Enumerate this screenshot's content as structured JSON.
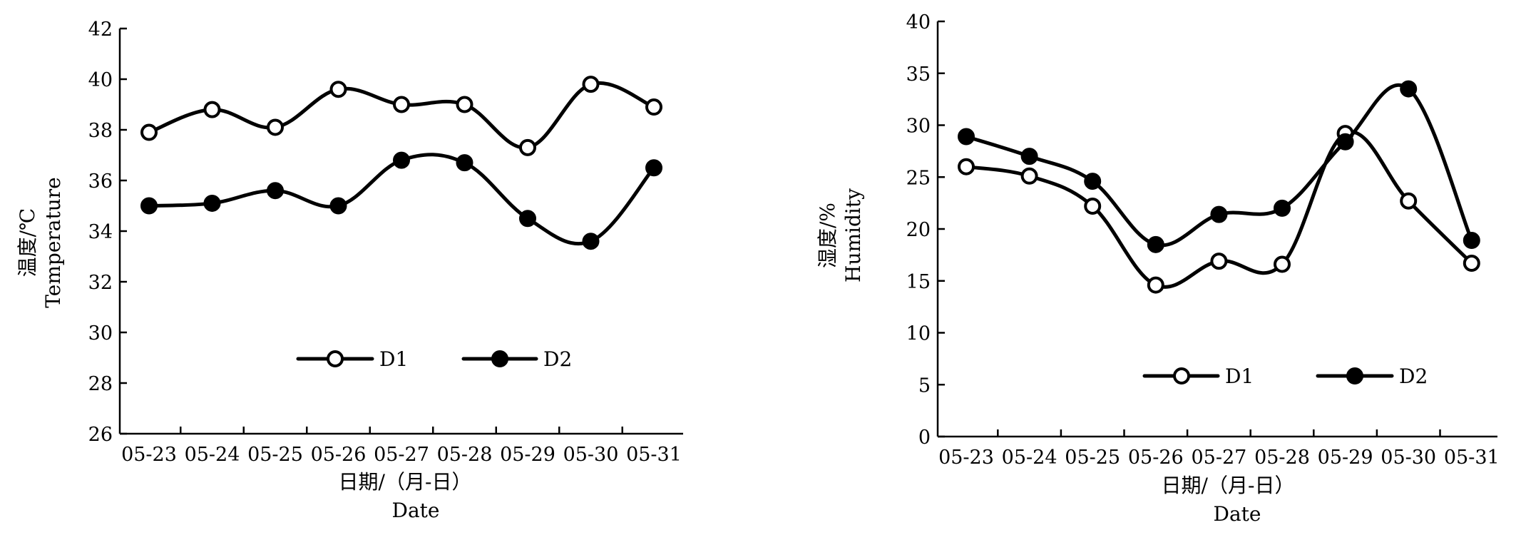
{
  "chart_data": [
    {
      "type": "line",
      "categories": [
        "05-23",
        "05-24",
        "05-25",
        "05-26",
        "05-27",
        "05-28",
        "05-29",
        "05-30",
        "05-31"
      ],
      "series": [
        {
          "name": "D1",
          "marker": "open-circle",
          "values": [
            37.9,
            38.8,
            38.1,
            39.6,
            39.0,
            39.0,
            37.3,
            39.8,
            38.9
          ]
        },
        {
          "name": "D2",
          "marker": "filled-circle",
          "values": [
            35.0,
            35.1,
            35.6,
            35.0,
            36.8,
            36.7,
            34.5,
            33.6,
            36.5
          ]
        }
      ],
      "ylabel_cn": "温度/℃",
      "ylabel_en": "Temperature",
      "xlabel_cn": "日期/（月-日）",
      "xlabel_en": "Date",
      "ylim": [
        26,
        42
      ],
      "yticks": [
        26,
        28,
        30,
        32,
        34,
        36,
        38,
        40,
        42
      ],
      "legend": "center"
    },
    {
      "type": "line",
      "categories": [
        "05-23",
        "05-24",
        "05-25",
        "05-26",
        "05-27",
        "05-28",
        "05-29",
        "05-30",
        "05-31"
      ],
      "series": [
        {
          "name": "D1",
          "marker": "open-circle",
          "values": [
            26.0,
            25.1,
            22.2,
            14.6,
            16.9,
            16.6,
            29.2,
            22.7,
            16.7
          ]
        },
        {
          "name": "D2",
          "marker": "filled-circle",
          "values": [
            28.9,
            27.0,
            24.6,
            18.5,
            21.4,
            22.0,
            28.4,
            33.5,
            18.9
          ]
        }
      ],
      "ylabel_cn": "湿度/%",
      "ylabel_en": "Humidity",
      "xlabel_cn": "日期/（月-日）",
      "xlabel_en": "Date",
      "ylim": [
        0,
        40
      ],
      "yticks": [
        0,
        5,
        10,
        15,
        20,
        25,
        30,
        35,
        40
      ],
      "legend": "bottom-center"
    }
  ]
}
